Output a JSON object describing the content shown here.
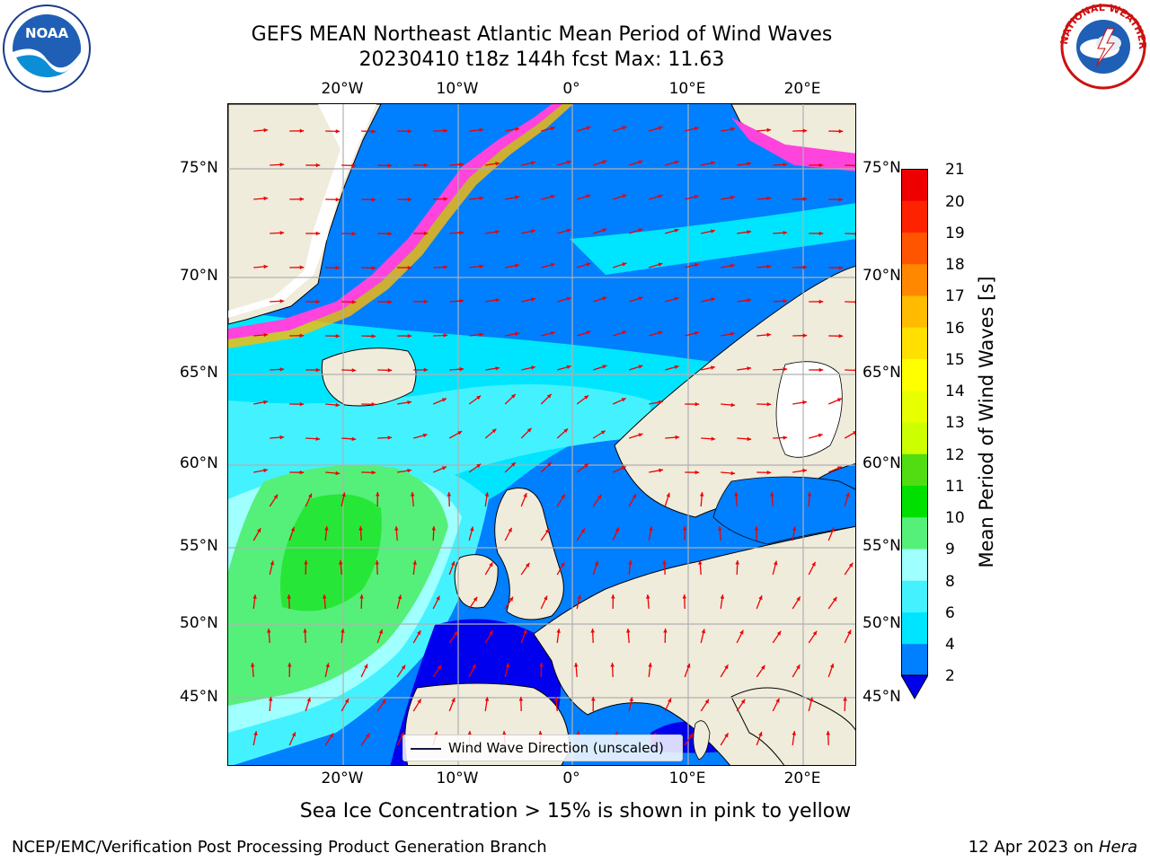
{
  "title": {
    "line1": "GEFS MEAN Northeast Atlantic Mean Period of Wind Waves",
    "line2": "20230410 t18z 144h fcst   Max: 11.63"
  },
  "logos": {
    "noaa_text": "NOAA",
    "nws_text": "NATIONAL WEATHER SERVICE"
  },
  "map": {
    "lat_labels": [
      "75°N",
      "70°N",
      "65°N",
      "60°N",
      "55°N",
      "50°N",
      "45°N"
    ],
    "lon_labels": [
      "20°W",
      "10°W",
      "0°",
      "10°E",
      "20°E"
    ],
    "legend_label": "Wind Wave Direction (unscaled)",
    "colors": {
      "land": "#efecdc",
      "coast": "#000000",
      "arrow": "#ee0000",
      "grid": "#b0b0b0"
    }
  },
  "colorbar": {
    "label": "Mean Period of Wind Waves [s]",
    "ticks": [
      "2",
      "4",
      "6",
      "8",
      "9",
      "10",
      "11",
      "12",
      "13",
      "14",
      "15",
      "16",
      "17",
      "18",
      "19",
      "20",
      "21"
    ],
    "colors": [
      "#0000ee",
      "#007fff",
      "#00e5ff",
      "#44f2ff",
      "#a0ffff",
      "#55f07a",
      "#00e000",
      "#52dc12",
      "#ccff00",
      "#e8ff00",
      "#ffff00",
      "#ffe000",
      "#ffbb00",
      "#ff8800",
      "#ff5500",
      "#ff2200",
      "#ee0000"
    ]
  },
  "caption": "Sea Ice Concentration > 15% is shown in pink to yellow",
  "footer": {
    "left": "NCEP/EMC/Verification Post Processing Product Generation Branch",
    "right_date": "12 Apr 2023 on ",
    "right_machine": "Hera"
  }
}
